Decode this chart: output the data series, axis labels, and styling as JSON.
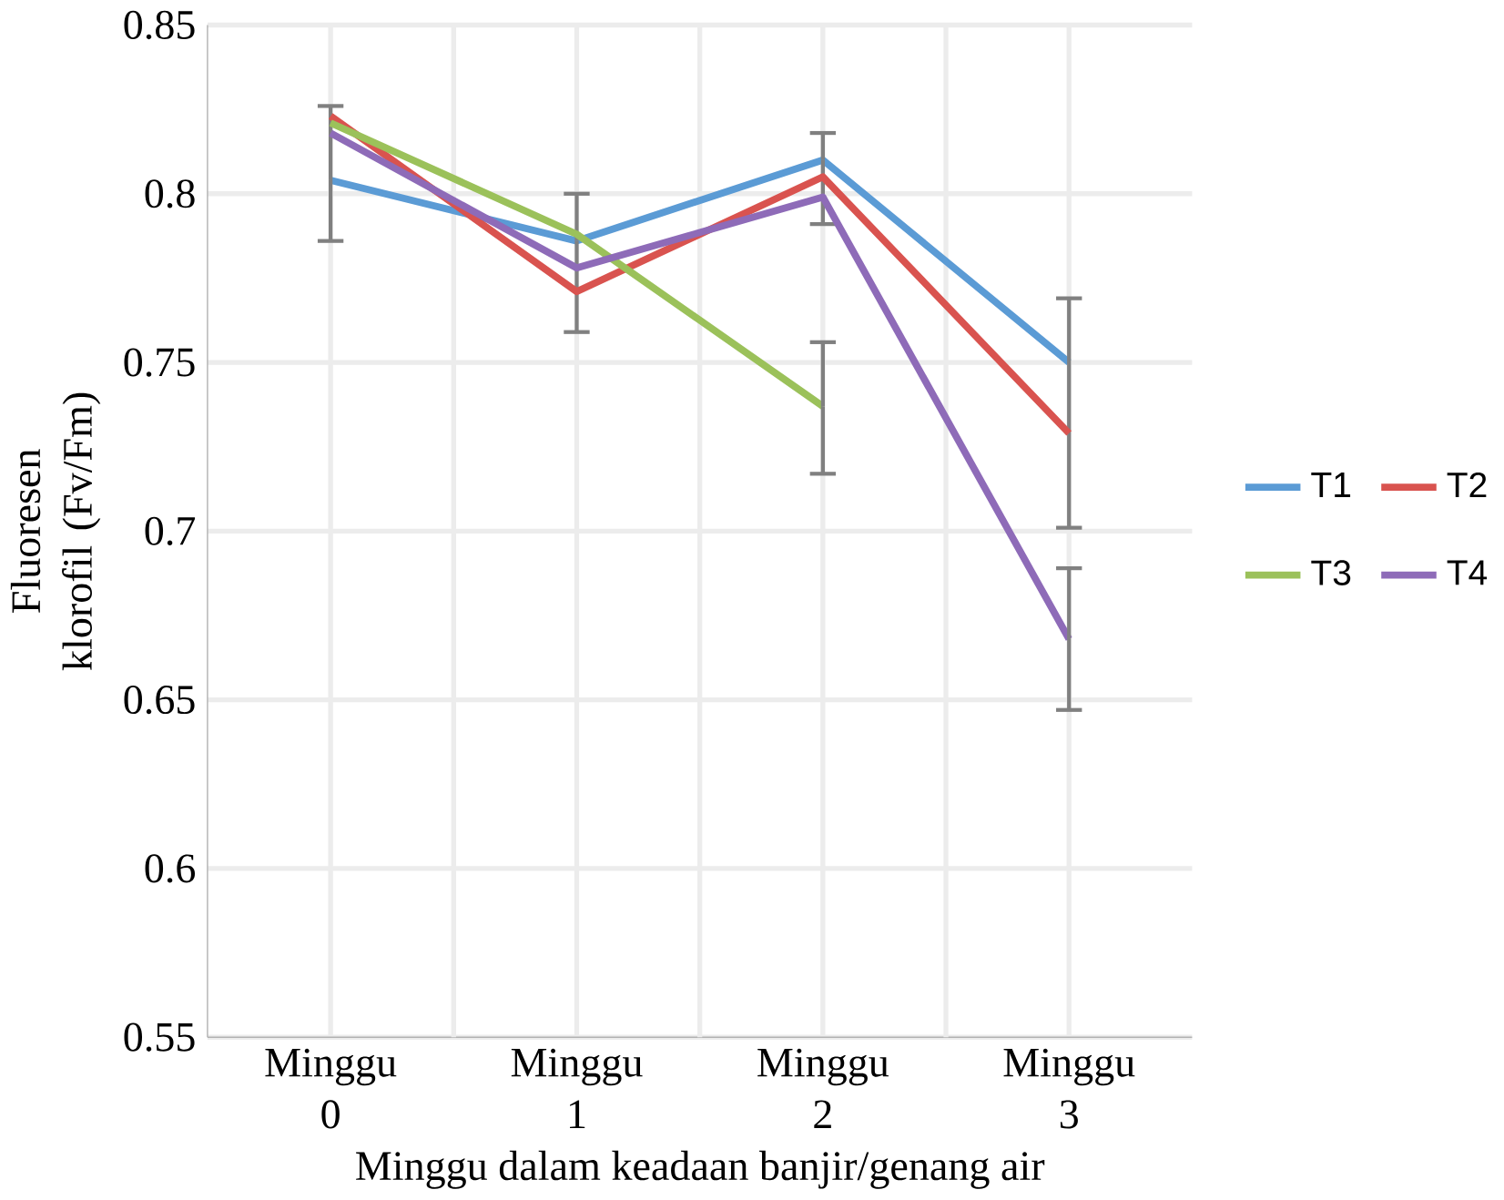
{
  "chart_data": {
    "type": "line",
    "xlabel": "Minggu dalam keadaan banjir/genang air",
    "ylabel": "Fluoresen klorofil (Fv/Fm)",
    "categories": [
      "Minggu 0",
      "Minggu 1",
      "Minggu 2",
      "Minggu 3"
    ],
    "series": [
      {
        "name": "T1",
        "color": "#5b9bd5",
        "values": [
          0.804,
          0.786,
          0.81,
          0.75
        ],
        "errors": [
          [
            0.786,
            0.826
          ],
          [
            0.759,
            0.8
          ],
          [
            0.791,
            0.818
          ],
          [
            0.701,
            0.769
          ]
        ]
      },
      {
        "name": "T2",
        "color": "#d9534f",
        "values": [
          0.823,
          0.771,
          0.805,
          0.729
        ]
      },
      {
        "name": "T3",
        "color": "#9bc15a",
        "values": [
          0.821,
          0.788,
          0.737,
          null
        ],
        "errors": [
          null,
          null,
          [
            0.717,
            0.756
          ],
          null
        ]
      },
      {
        "name": "T4",
        "color": "#8e6bb8",
        "values": [
          0.818,
          0.778,
          0.799,
          0.668
        ],
        "errors": [
          null,
          null,
          null,
          [
            0.647,
            0.689
          ]
        ]
      }
    ],
    "ylim": [
      0.55,
      0.85
    ],
    "yticks": [
      0.55,
      0.6,
      0.65,
      0.7,
      0.75,
      0.8,
      0.85
    ],
    "grid": true,
    "legend": "right",
    "marker": "none",
    "line_style": "solid"
  }
}
